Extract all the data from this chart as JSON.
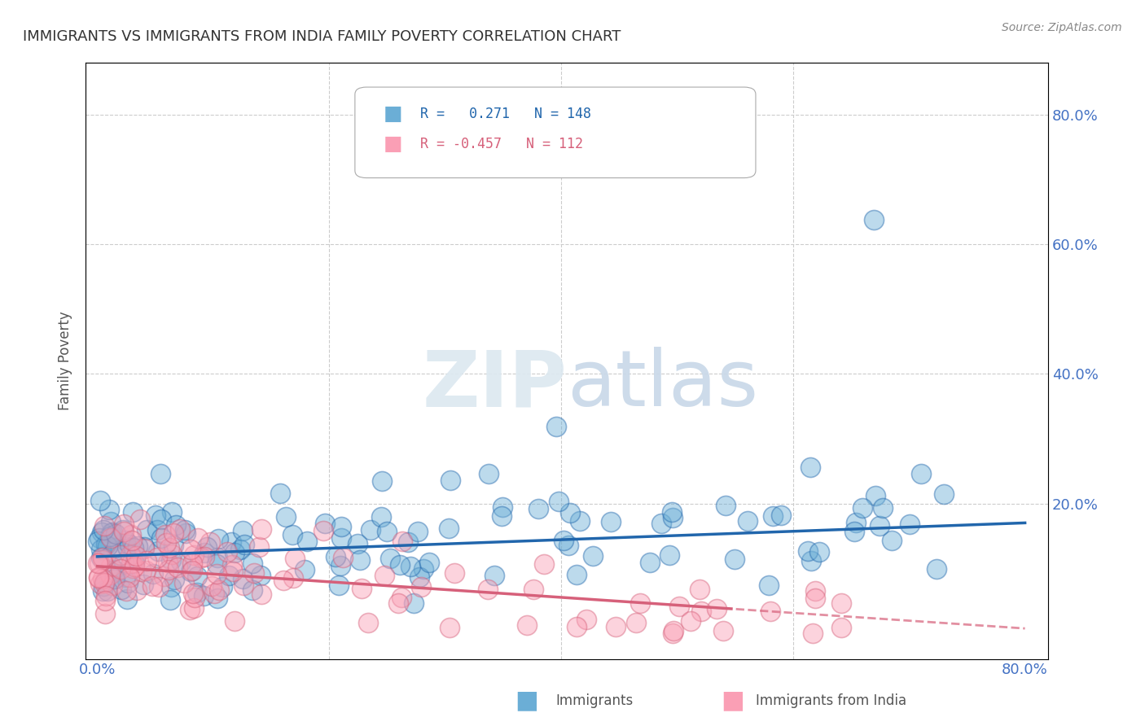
{
  "title": "IMMIGRANTS VS IMMIGRANTS FROM INDIA FAMILY POVERTY CORRELATION CHART",
  "source": "Source: ZipAtlas.com",
  "ylabel": "Family Poverty",
  "blue_R": 0.271,
  "blue_N": 148,
  "pink_R": -0.457,
  "pink_N": 112,
  "blue_color": "#6baed6",
  "pink_color": "#fa9fb5",
  "blue_line_color": "#2166ac",
  "pink_line_color": "#d6607a",
  "watermark_color": "#dce8f0",
  "background_color": "#ffffff",
  "grid_color": "#cccccc"
}
